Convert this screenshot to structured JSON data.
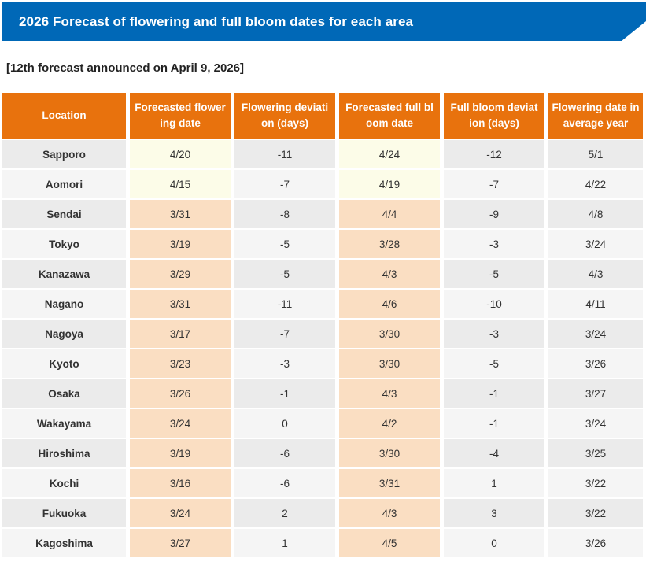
{
  "banner": {
    "title": "2026 Forecast of flowering and full bloom dates for each area"
  },
  "announcement": "[12th forecast announced on April 9, 2026]",
  "colors": {
    "accent_blue": "#0068B7",
    "header_bg": "#E8720D",
    "row_odd": "#EBEBEB",
    "row_even": "#F5F5F5",
    "future_date_highlight": "#FCFCE8",
    "past_date_highlight": "#FADEC2"
  },
  "table": {
    "columns": [
      {
        "label": "Location"
      },
      {
        "label": "Forecasted flower\ning date"
      },
      {
        "label": "Flowering deviati\non (days)"
      },
      {
        "label": "Forecasted full bl\noom date"
      },
      {
        "label": "Full bloom deviat\nion (days)"
      },
      {
        "label": "Flowering date in\naverage year"
      }
    ],
    "rows": [
      {
        "location": "Sapporo",
        "forecasted_flowering": "4/20",
        "flowering_deviation": "-11",
        "forecasted_full_bloom": "4/24",
        "full_bloom_deviation": "-12",
        "average_year": "5/1",
        "date_highlight": "yellow"
      },
      {
        "location": "Aomori",
        "forecasted_flowering": "4/15",
        "flowering_deviation": "-7",
        "forecasted_full_bloom": "4/19",
        "full_bloom_deviation": "-7",
        "average_year": "4/22",
        "date_highlight": "yellow"
      },
      {
        "location": "Sendai",
        "forecasted_flowering": "3/31",
        "flowering_deviation": "-8",
        "forecasted_full_bloom": "4/4",
        "full_bloom_deviation": "-9",
        "average_year": "4/8",
        "date_highlight": "peach"
      },
      {
        "location": "Tokyo",
        "forecasted_flowering": "3/19",
        "flowering_deviation": "-5",
        "forecasted_full_bloom": "3/28",
        "full_bloom_deviation": "-3",
        "average_year": "3/24",
        "date_highlight": "peach"
      },
      {
        "location": "Kanazawa",
        "forecasted_flowering": "3/29",
        "flowering_deviation": "-5",
        "forecasted_full_bloom": "4/3",
        "full_bloom_deviation": "-5",
        "average_year": "4/3",
        "date_highlight": "peach"
      },
      {
        "location": "Nagano",
        "forecasted_flowering": "3/31",
        "flowering_deviation": "-11",
        "forecasted_full_bloom": "4/6",
        "full_bloom_deviation": "-10",
        "average_year": "4/11",
        "date_highlight": "peach"
      },
      {
        "location": "Nagoya",
        "forecasted_flowering": "3/17",
        "flowering_deviation": "-7",
        "forecasted_full_bloom": "3/30",
        "full_bloom_deviation": "-3",
        "average_year": "3/24",
        "date_highlight": "peach"
      },
      {
        "location": "Kyoto",
        "forecasted_flowering": "3/23",
        "flowering_deviation": "-3",
        "forecasted_full_bloom": "3/30",
        "full_bloom_deviation": "-5",
        "average_year": "3/26",
        "date_highlight": "peach"
      },
      {
        "location": "Osaka",
        "forecasted_flowering": "3/26",
        "flowering_deviation": "-1",
        "forecasted_full_bloom": "4/3",
        "full_bloom_deviation": "-1",
        "average_year": "3/27",
        "date_highlight": "peach"
      },
      {
        "location": "Wakayama",
        "forecasted_flowering": "3/24",
        "flowering_deviation": "0",
        "forecasted_full_bloom": "4/2",
        "full_bloom_deviation": "-1",
        "average_year": "3/24",
        "date_highlight": "peach"
      },
      {
        "location": "Hiroshima",
        "forecasted_flowering": "3/19",
        "flowering_deviation": "-6",
        "forecasted_full_bloom": "3/30",
        "full_bloom_deviation": "-4",
        "average_year": "3/25",
        "date_highlight": "peach"
      },
      {
        "location": "Kochi",
        "forecasted_flowering": "3/16",
        "flowering_deviation": "-6",
        "forecasted_full_bloom": "3/31",
        "full_bloom_deviation": "1",
        "average_year": "3/22",
        "date_highlight": "peach"
      },
      {
        "location": "Fukuoka",
        "forecasted_flowering": "3/24",
        "flowering_deviation": "2",
        "forecasted_full_bloom": "4/3",
        "full_bloom_deviation": "3",
        "average_year": "3/22",
        "date_highlight": "peach"
      },
      {
        "location": "Kagoshima",
        "forecasted_flowering": "3/27",
        "flowering_deviation": "1",
        "forecasted_full_bloom": "4/5",
        "full_bloom_deviation": "0",
        "average_year": "3/26",
        "date_highlight": "peach"
      }
    ]
  }
}
